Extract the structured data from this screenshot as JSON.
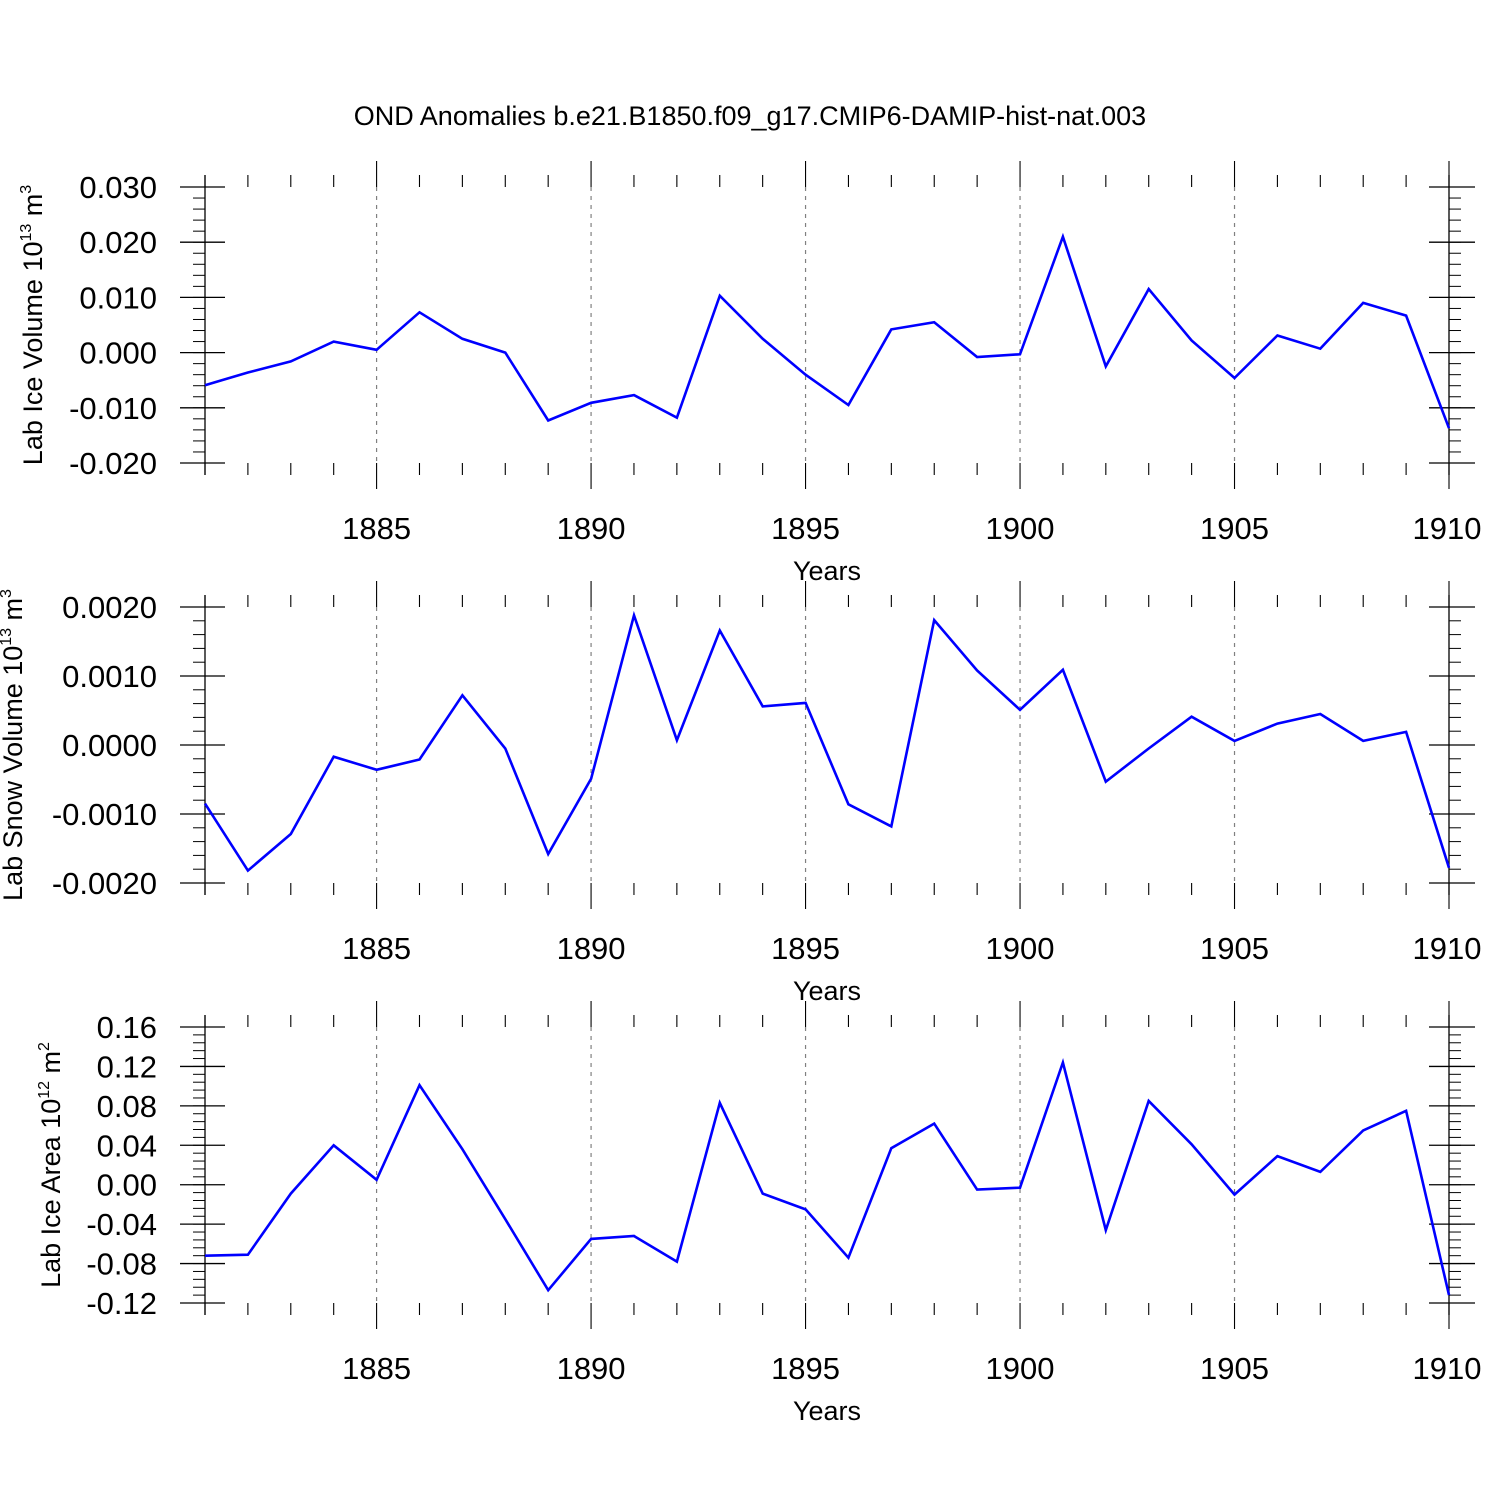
{
  "title": "OND Anomalies b.e21.B1850.f09_g17.CMIP6-DAMIP-hist-nat.003",
  "colors": {
    "line": "#0000ff",
    "axis": "#000000",
    "grid": "#808080"
  },
  "chart_data": [
    {
      "type": "line",
      "name": "lab-ice-volume",
      "ylabel": {
        "text": "Lab Ice Volume 10",
        "sup": "13",
        "unit": " m",
        "unit_sup": "3"
      },
      "xlabel": "Years",
      "xlim": [
        1881,
        1910
      ],
      "ylim": [
        -0.02,
        0.03
      ],
      "yticks": [
        -0.02,
        -0.01,
        0.0,
        0.01,
        0.02,
        0.03
      ],
      "ytick_labels": [
        "-0.020",
        "-0.010",
        "0.000",
        "0.010",
        "0.020",
        "0.030"
      ],
      "xticks": [
        1885,
        1890,
        1895,
        1900,
        1905,
        1910
      ],
      "xtick_labels": [
        "1885",
        "1890",
        "1895",
        "1900",
        "1905",
        "1910"
      ],
      "grid": "vertical-dashed",
      "series": [
        {
          "name": "Lab Ice Volume",
          "x": [
            1881,
            1882,
            1883,
            1884,
            1885,
            1886,
            1887,
            1888,
            1889,
            1890,
            1891,
            1892,
            1893,
            1894,
            1895,
            1896,
            1897,
            1898,
            1899,
            1900,
            1901,
            1902,
            1903,
            1904,
            1905,
            1906,
            1907,
            1908,
            1909,
            1910
          ],
          "values": [
            -0.0059,
            -0.0036,
            -0.0016,
            0.002,
            0.0005,
            0.0073,
            0.0025,
            0.0,
            -0.0123,
            -0.0091,
            -0.0077,
            -0.0118,
            0.0103,
            0.0025,
            -0.004,
            -0.0095,
            0.0042,
            0.0055,
            -0.0008,
            -0.0003,
            0.021,
            -0.0025,
            0.0115,
            0.0022,
            -0.0046,
            0.0031,
            0.0007,
            0.009,
            0.0067,
            -0.0137
          ]
        }
      ]
    },
    {
      "type": "line",
      "name": "lab-snow-volume",
      "ylabel": {
        "text": "Lab Snow Volume 10",
        "sup": "13",
        "unit": " m",
        "unit_sup": "3"
      },
      "xlabel": "Years",
      "xlim": [
        1881,
        1910
      ],
      "ylim": [
        -0.002,
        0.002
      ],
      "yticks": [
        -0.002,
        -0.001,
        0.0,
        0.001,
        0.002
      ],
      "ytick_labels": [
        "-0.0020",
        "-0.0010",
        "0.0000",
        "0.0010",
        "0.0020"
      ],
      "xticks": [
        1885,
        1890,
        1895,
        1900,
        1905,
        1910
      ],
      "xtick_labels": [
        "1885",
        "1890",
        "1895",
        "1900",
        "1905",
        "1910"
      ],
      "grid": "vertical-dashed",
      "series": [
        {
          "name": "Lab Snow Volume",
          "x": [
            1881,
            1882,
            1883,
            1884,
            1885,
            1886,
            1887,
            1888,
            1889,
            1890,
            1891,
            1892,
            1893,
            1894,
            1895,
            1896,
            1897,
            1898,
            1899,
            1900,
            1901,
            1902,
            1903,
            1904,
            1905,
            1906,
            1907,
            1908,
            1909,
            1910
          ],
          "values": [
            -0.00085,
            -0.00182,
            -0.00129,
            -0.00017,
            -0.00036,
            -0.00021,
            0.00072,
            -5e-05,
            -0.00158,
            -0.00049,
            0.00188,
            7e-05,
            0.00166,
            0.00056,
            0.00061,
            -0.00086,
            -0.00118,
            0.00181,
            0.00108,
            0.00051,
            0.00109,
            -0.00053,
            -5e-05,
            0.00041,
            6e-05,
            0.00031,
            0.00045,
            6e-05,
            0.00019,
            -0.00178
          ]
        }
      ]
    },
    {
      "type": "line",
      "name": "lab-ice-area",
      "ylabel": {
        "text": "Lab Ice Area 10",
        "sup": "12",
        "unit": " m",
        "unit_sup": "2"
      },
      "xlabel": "Years",
      "xlim": [
        1881,
        1910
      ],
      "ylim": [
        -0.12,
        0.16
      ],
      "yticks": [
        -0.12,
        -0.08,
        -0.04,
        0.0,
        0.04,
        0.08,
        0.12,
        0.16
      ],
      "ytick_labels": [
        "-0.12",
        "-0.08",
        "-0.04",
        "0.00",
        "0.04",
        "0.08",
        "0.12",
        "0.16"
      ],
      "xticks": [
        1885,
        1890,
        1895,
        1900,
        1905,
        1910
      ],
      "xtick_labels": [
        "1885",
        "1890",
        "1895",
        "1900",
        "1905",
        "1910"
      ],
      "grid": "vertical-dashed",
      "series": [
        {
          "name": "Lab Ice Area",
          "x": [
            1881,
            1882,
            1883,
            1884,
            1885,
            1886,
            1887,
            1888,
            1889,
            1890,
            1891,
            1892,
            1893,
            1894,
            1895,
            1896,
            1897,
            1898,
            1899,
            1900,
            1901,
            1902,
            1903,
            1904,
            1905,
            1906,
            1907,
            1908,
            1909,
            1910
          ],
          "values": [
            -0.072,
            -0.071,
            -0.009,
            0.04,
            0.005,
            0.101,
            0.036,
            -0.035,
            -0.107,
            -0.055,
            -0.052,
            -0.078,
            0.083,
            -0.009,
            -0.025,
            -0.074,
            0.037,
            0.062,
            -0.005,
            -0.003,
            0.124,
            -0.046,
            0.085,
            0.041,
            -0.01,
            0.029,
            0.013,
            0.055,
            0.075,
            -0.112
          ]
        }
      ]
    }
  ]
}
